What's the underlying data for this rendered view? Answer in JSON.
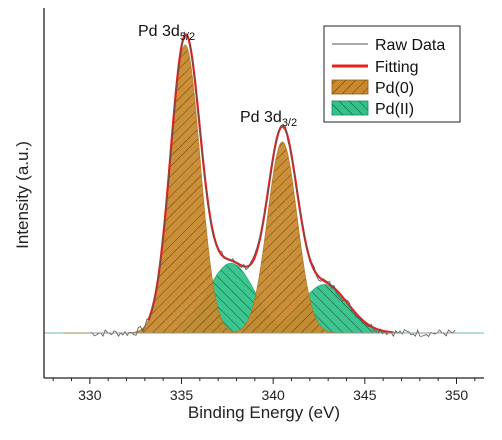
{
  "chart_data": {
    "type": "area",
    "xlabel": "Binding Energy (eV)",
    "ylabel": "Intensity (a.u.)",
    "xlim": [
      327.5,
      351.5
    ],
    "ylim": [
      0,
      1.05
    ],
    "x_ticks": [
      "330",
      "335",
      "340",
      "345",
      "350"
    ],
    "y_ticks": [],
    "grid": false,
    "legend_position": "top-right",
    "series": [
      {
        "name": "Raw Data",
        "kind": "line",
        "color": "#555555"
      },
      {
        "name": "Fitting",
        "kind": "line",
        "color": "#e8231f"
      },
      {
        "name": "Pd(0)",
        "kind": "area",
        "color": "#c98a2e",
        "peaks": [
          {
            "center": 335.2,
            "height": 0.95,
            "fwhm": 1.9
          },
          {
            "center": 340.5,
            "height": 0.63,
            "fwhm": 1.9
          }
        ]
      },
      {
        "name": "Pd(II)",
        "kind": "area",
        "color": "#33c28a",
        "peaks": [
          {
            "center": 337.7,
            "height": 0.23,
            "fwhm": 3.0
          },
          {
            "center": 342.8,
            "height": 0.16,
            "fwhm": 3.0
          }
        ]
      }
    ],
    "x_range_data": [
      330,
      350
    ],
    "baseline": 0.0,
    "annotations": [
      {
        "text": "Pd 3d",
        "subscript": "5/2",
        "x": 335.2
      },
      {
        "text": "Pd 3d",
        "subscript": "3/2",
        "x": 340.5
      }
    ]
  }
}
